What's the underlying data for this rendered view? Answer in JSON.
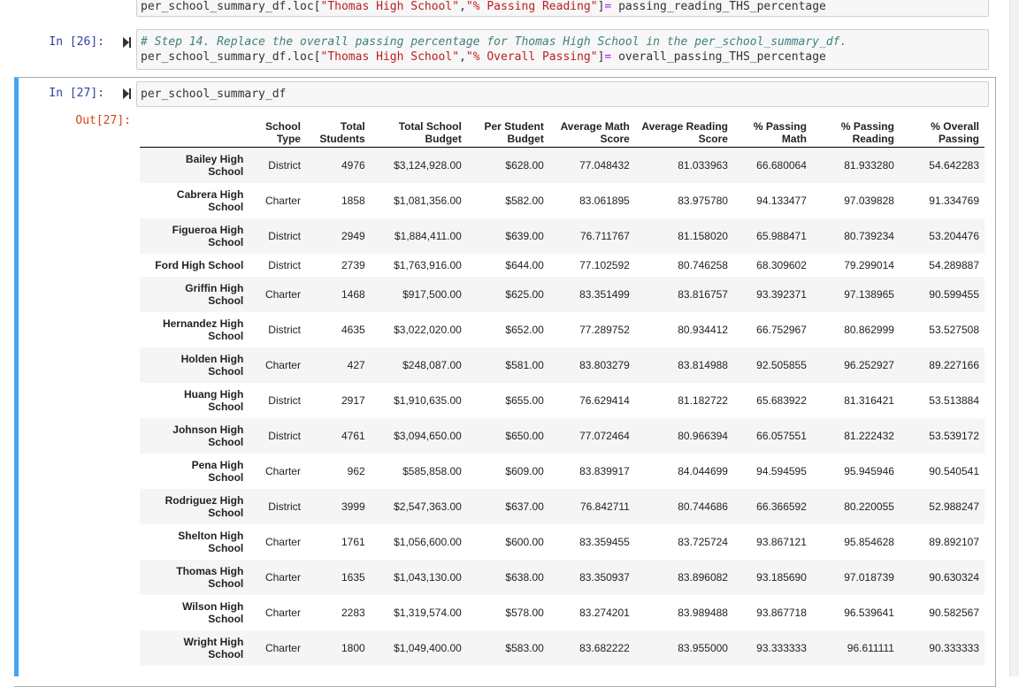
{
  "cells": [
    {
      "prompt": "",
      "lines": [
        [
          {
            "t": "per_school_summary_df.loc[",
            "c": ""
          },
          {
            "t": "\"Thomas High School\"",
            "c": "cm-string"
          },
          {
            "t": ",",
            "c": ""
          },
          {
            "t": "\"% Passing Reading\"",
            "c": "cm-string"
          },
          {
            "t": "]",
            "c": ""
          },
          {
            "t": "=",
            "c": "cm-op"
          },
          {
            "t": " passing_reading_THS_percentage",
            "c": ""
          }
        ]
      ]
    },
    {
      "prompt": "In [26]:",
      "lines": [
        [
          {
            "t": "# Step 14. Replace the overall passing percentage for Thomas High School in the per_school_summary_df.",
            "c": "cm-comment"
          }
        ],
        [
          {
            "t": "per_school_summary_df.loc[",
            "c": ""
          },
          {
            "t": "\"Thomas High School\"",
            "c": "cm-string"
          },
          {
            "t": ",",
            "c": ""
          },
          {
            "t": "\"% Overall Passing\"",
            "c": "cm-string"
          },
          {
            "t": "]",
            "c": ""
          },
          {
            "t": "=",
            "c": "cm-op"
          },
          {
            "t": " overall_passing_THS_percentage",
            "c": ""
          }
        ]
      ]
    },
    {
      "prompt": "In [27]:",
      "lines": [
        [
          {
            "t": "per_school_summary_df",
            "c": ""
          }
        ]
      ]
    }
  ],
  "output_prompt": "Out[27]:",
  "table": {
    "columns": [
      [
        "School",
        "Type"
      ],
      [
        "Total",
        "Students"
      ],
      [
        "Total School",
        "Budget"
      ],
      [
        "Per Student",
        "Budget"
      ],
      [
        "Average Math",
        "Score"
      ],
      [
        "Average Reading",
        "Score"
      ],
      [
        "% Passing",
        "Math"
      ],
      [
        "% Passing",
        "Reading"
      ],
      [
        "% Overall",
        "Passing"
      ]
    ],
    "rows": [
      {
        "index": [
          "Bailey High",
          "School"
        ],
        "cells": [
          "District",
          "4976",
          "$3,124,928.00",
          "$628.00",
          "77.048432",
          "81.033963",
          "66.680064",
          "81.933280",
          "54.642283"
        ]
      },
      {
        "index": [
          "Cabrera High",
          "School"
        ],
        "cells": [
          "Charter",
          "1858",
          "$1,081,356.00",
          "$582.00",
          "83.061895",
          "83.975780",
          "94.133477",
          "97.039828",
          "91.334769"
        ]
      },
      {
        "index": [
          "Figueroa High",
          "School"
        ],
        "cells": [
          "District",
          "2949",
          "$1,884,411.00",
          "$639.00",
          "76.711767",
          "81.158020",
          "65.988471",
          "80.739234",
          "53.204476"
        ]
      },
      {
        "index": [
          "Ford High School"
        ],
        "cells": [
          "District",
          "2739",
          "$1,763,916.00",
          "$644.00",
          "77.102592",
          "80.746258",
          "68.309602",
          "79.299014",
          "54.289887"
        ]
      },
      {
        "index": [
          "Griffin High",
          "School"
        ],
        "cells": [
          "Charter",
          "1468",
          "$917,500.00",
          "$625.00",
          "83.351499",
          "83.816757",
          "93.392371",
          "97.138965",
          "90.599455"
        ]
      },
      {
        "index": [
          "Hernandez High",
          "School"
        ],
        "cells": [
          "District",
          "4635",
          "$3,022,020.00",
          "$652.00",
          "77.289752",
          "80.934412",
          "66.752967",
          "80.862999",
          "53.527508"
        ]
      },
      {
        "index": [
          "Holden High",
          "School"
        ],
        "cells": [
          "Charter",
          "427",
          "$248,087.00",
          "$581.00",
          "83.803279",
          "83.814988",
          "92.505855",
          "96.252927",
          "89.227166"
        ]
      },
      {
        "index": [
          "Huang High",
          "School"
        ],
        "cells": [
          "District",
          "2917",
          "$1,910,635.00",
          "$655.00",
          "76.629414",
          "81.182722",
          "65.683922",
          "81.316421",
          "53.513884"
        ]
      },
      {
        "index": [
          "Johnson High",
          "School"
        ],
        "cells": [
          "District",
          "4761",
          "$3,094,650.00",
          "$650.00",
          "77.072464",
          "80.966394",
          "66.057551",
          "81.222432",
          "53.539172"
        ]
      },
      {
        "index": [
          "Pena High",
          "School"
        ],
        "cells": [
          "Charter",
          "962",
          "$585,858.00",
          "$609.00",
          "83.839917",
          "84.044699",
          "94.594595",
          "95.945946",
          "90.540541"
        ]
      },
      {
        "index": [
          "Rodriguez High",
          "School"
        ],
        "cells": [
          "District",
          "3999",
          "$2,547,363.00",
          "$637.00",
          "76.842711",
          "80.744686",
          "66.366592",
          "80.220055",
          "52.988247"
        ]
      },
      {
        "index": [
          "Shelton High",
          "School"
        ],
        "cells": [
          "Charter",
          "1761",
          "$1,056,600.00",
          "$600.00",
          "83.359455",
          "83.725724",
          "93.867121",
          "95.854628",
          "89.892107"
        ]
      },
      {
        "index": [
          "Thomas High",
          "School"
        ],
        "cells": [
          "Charter",
          "1635",
          "$1,043,130.00",
          "$638.00",
          "83.350937",
          "83.896082",
          "93.185690",
          "97.018739",
          "90.630324"
        ]
      },
      {
        "index": [
          "Wilson High",
          "School"
        ],
        "cells": [
          "Charter",
          "2283",
          "$1,319,574.00",
          "$578.00",
          "83.274201",
          "83.989488",
          "93.867718",
          "96.539641",
          "90.582567"
        ]
      },
      {
        "index": [
          "Wright High",
          "School"
        ],
        "cells": [
          "Charter",
          "1800",
          "$1,049,400.00",
          "$583.00",
          "83.682222",
          "83.955000",
          "93.333333",
          "96.611111",
          "90.333333"
        ]
      }
    ]
  }
}
